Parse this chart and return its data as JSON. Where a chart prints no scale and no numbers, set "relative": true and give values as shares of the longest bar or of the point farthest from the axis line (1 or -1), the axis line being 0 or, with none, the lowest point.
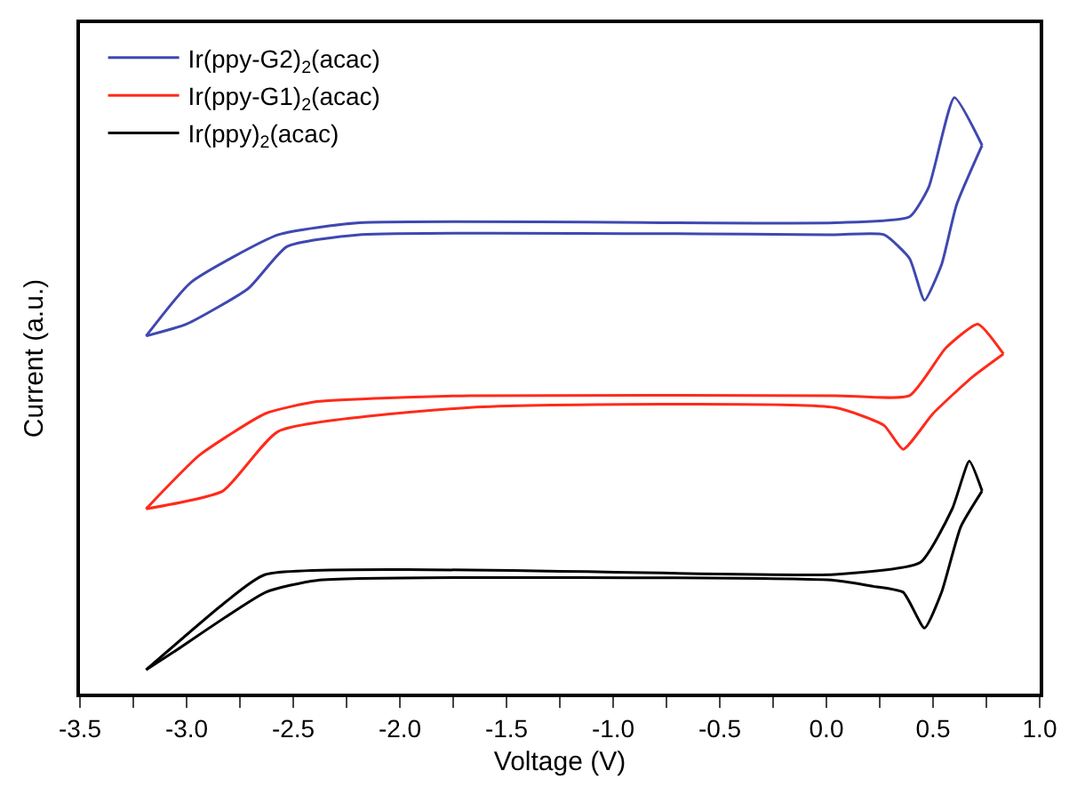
{
  "chart_data": {
    "type": "line",
    "xlabel": "Voltage (V)",
    "ylabel": "Current (a.u.)",
    "relative": true,
    "xlim": [
      -3.5,
      1.0
    ],
    "xticks": [
      {
        "value": -3.5,
        "label": "-3.5"
      },
      {
        "value": -3.25,
        "label": null
      },
      {
        "value": -3,
        "label": "-3.0"
      },
      {
        "value": -2.75,
        "label": null
      },
      {
        "value": -2.5,
        "label": "-2.5"
      },
      {
        "value": -2.25,
        "label": null
      },
      {
        "value": -2,
        "label": "-2.0"
      },
      {
        "value": -1.75,
        "label": null
      },
      {
        "value": -1.5,
        "label": "-1.5"
      },
      {
        "value": -1.25,
        "label": null
      },
      {
        "value": -1,
        "label": "-1.0"
      },
      {
        "value": -0.75,
        "label": null
      },
      {
        "value": -0.5,
        "label": "-0.5"
      },
      {
        "value": -0.25,
        "label": null
      },
      {
        "value": 0,
        "label": "0.0"
      },
      {
        "value": 0.25,
        "label": null
      },
      {
        "value": 0.5,
        "label": "0.5"
      },
      {
        "value": 0.75,
        "label": null
      },
      {
        "value": 1,
        "label": "1.0"
      }
    ],
    "legend": "top left",
    "marker": "none",
    "line_style": "solid",
    "series": [
      {
        "name": "Ir(ppy-G2)$_{2}$(acac)",
        "color": "#3f48b0",
        "x": [
          0.73,
          0.6,
          0.48,
          0.39,
          0.04,
          -2.19,
          -2.57,
          -2.98,
          -3.19
        ],
        "values": [
          0.92,
          1.0,
          0.85,
          0.8,
          0.79,
          0.79,
          0.77,
          0.69,
          0.6
        ]
      },
      {
        "name": "Ir(ppy-G1)$_{2}$(acac)",
        "color": "#ff2a1a",
        "x": [
          0.83,
          0.71,
          0.56,
          0.39,
          0.04,
          -1.67,
          -2.39,
          -2.63,
          -2.94,
          -3.19
        ],
        "values": [
          0.57,
          0.62,
          0.58,
          0.5,
          0.5,
          0.5,
          0.49,
          0.47,
          0.4,
          0.31
        ]
      },
      {
        "name": "Ir(ppy)$_{2}$(acac)",
        "color": "#000000",
        "x": [
          0.73,
          0.67,
          0.59,
          0.44,
          0.04,
          -2.63,
          -2.83,
          -3.19
        ],
        "values": [
          0.34,
          0.39,
          0.31,
          0.22,
          0.2,
          0.2,
          0.15,
          0.04
        ]
      },
      {
        "color": "#3f48b0",
        "x": [
          -3.19,
          -3.0,
          -2.71,
          -2.53,
          -2.19,
          0.04,
          0.27,
          0.39,
          0.46,
          0.54,
          0.61,
          0.73
        ],
        "values": [
          0.6,
          0.62,
          0.68,
          0.75,
          0.77,
          0.77,
          0.77,
          0.73,
          0.66,
          0.72,
          0.82,
          0.92
        ]
      },
      {
        "color": "#ff2a1a",
        "x": [
          -3.19,
          -2.83,
          -2.57,
          -1.67,
          0.04,
          0.27,
          0.36,
          0.5,
          0.68,
          0.83
        ],
        "values": [
          0.31,
          0.34,
          0.44,
          0.48,
          0.48,
          0.45,
          0.41,
          0.47,
          0.53,
          0.57
        ]
      },
      {
        "color": "#000000",
        "x": [
          -3.19,
          -3.06,
          -2.63,
          -2.39,
          0.04,
          0.22,
          0.36,
          0.46,
          0.54,
          0.63,
          0.73
        ],
        "values": [
          0.04,
          0.07,
          0.17,
          0.19,
          0.19,
          0.18,
          0.17,
          0.11,
          0.17,
          0.28,
          0.34
        ]
      }
    ]
  }
}
